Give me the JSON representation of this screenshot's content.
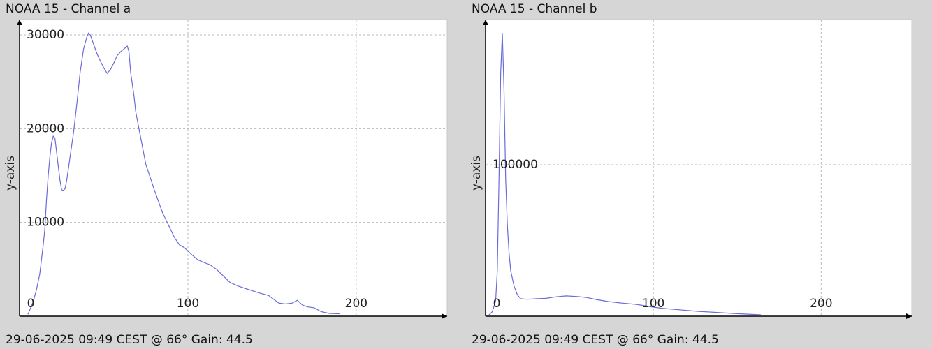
{
  "chart_data": [
    {
      "type": "line",
      "title": "NOAA 15 - Channel a",
      "ylabel": "y-axis",
      "caption": "29-06-2025 09:49 CEST @ 66° Gain: 44.5",
      "color": "#6b6bd9",
      "grid": true,
      "xlim": [
        0,
        254
      ],
      "xticks": [
        0,
        100,
        200
      ],
      "ylim": [
        0,
        31640
      ],
      "yticks": [
        10000,
        20000,
        30000
      ],
      "x": [
        5,
        8,
        10,
        12,
        14,
        15,
        16,
        17,
        18,
        19,
        20,
        21,
        22,
        23,
        24,
        25,
        26,
        27,
        28,
        30,
        32,
        34,
        36,
        38,
        40,
        41,
        42,
        44,
        46,
        48,
        50,
        52,
        54,
        56,
        58,
        60,
        62,
        64,
        65,
        66,
        68,
        69,
        72,
        75,
        80,
        85,
        88,
        92,
        95,
        98,
        102,
        106,
        110,
        113,
        117,
        121,
        125,
        130,
        135,
        142,
        148,
        154,
        158,
        162,
        165,
        168,
        171,
        175,
        179,
        184,
        190
      ],
      "values": [
        200,
        1500,
        2800,
        4500,
        7500,
        9200,
        12500,
        15000,
        17000,
        18500,
        19200,
        19000,
        17500,
        16000,
        14500,
        13500,
        13400,
        13600,
        14500,
        17000,
        19500,
        22600,
        26000,
        28500,
        29800,
        30200,
        30000,
        29000,
        28000,
        27200,
        26500,
        25900,
        26300,
        27000,
        27800,
        28200,
        28500,
        28800,
        28200,
        26000,
        23500,
        21800,
        19000,
        16200,
        13500,
        11000,
        9900,
        8400,
        7600,
        7300,
        6600,
        6000,
        5700,
        5500,
        5000,
        4300,
        3600,
        3200,
        2900,
        2500,
        2200,
        1400,
        1300,
        1400,
        1700,
        1200,
        1000,
        900,
        500,
        300,
        260
      ]
    },
    {
      "type": "line",
      "title": "NOAA 15 - Channel b",
      "ylabel": "y-axis",
      "caption": "29-06-2025 09:49 CEST @ 66° Gain: 44.5",
      "color": "#6b6bd9",
      "grid": true,
      "xlim": [
        0,
        254
      ],
      "xticks": [
        0,
        100,
        200
      ],
      "ylim": [
        0,
        195850
      ],
      "yticks": [
        100000
      ],
      "x": [
        2,
        4,
        6,
        7,
        8,
        9,
        10,
        11,
        12,
        13,
        14,
        15,
        17,
        19,
        21,
        25,
        30,
        36,
        42,
        48,
        55,
        60,
        66,
        73,
        80,
        90,
        100,
        106,
        115,
        127,
        138,
        148,
        164
      ],
      "values": [
        800,
        3000,
        10000,
        30000,
        90000,
        160000,
        187000,
        150000,
        90000,
        60000,
        42000,
        30000,
        19800,
        14000,
        11500,
        11200,
        11500,
        11800,
        12800,
        13400,
        13000,
        12400,
        11000,
        9700,
        8800,
        7800,
        6000,
        5100,
        4300,
        3200,
        2500,
        1800,
        900
      ]
    }
  ]
}
